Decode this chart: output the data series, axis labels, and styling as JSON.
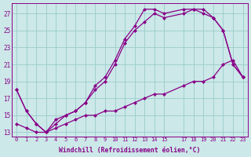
{
  "xlabel": "Windchill (Refroidissement éolien,°C)",
  "background_color": "#cce8e8",
  "grid_color": "#99cccc",
  "line_color": "#880088",
  "marker": "D",
  "markersize": 2.5,
  "linewidth": 0.9,
  "xlim": [
    -0.5,
    23.5
  ],
  "ylim": [
    12.5,
    28.2
  ],
  "xticks": [
    0,
    1,
    2,
    3,
    4,
    5,
    6,
    7,
    8,
    9,
    10,
    11,
    12,
    13,
    14,
    15,
    17,
    18,
    19,
    20,
    21,
    22,
    23
  ],
  "yticks": [
    13,
    15,
    17,
    19,
    21,
    23,
    25,
    27
  ],
  "line1_x": [
    0,
    1,
    2,
    3,
    4,
    5,
    6,
    7,
    8,
    9,
    10,
    11,
    12,
    13,
    14,
    15,
    17,
    18,
    19,
    20,
    21,
    22,
    23
  ],
  "line1_y": [
    18.0,
    15.5,
    14.0,
    13.0,
    14.0,
    15.0,
    15.5,
    16.5,
    18.5,
    19.5,
    21.5,
    24.0,
    25.5,
    27.5,
    27.5,
    27.0,
    27.5,
    27.5,
    27.5,
    26.5,
    25.0,
    21.0,
    19.5
  ],
  "line2_x": [
    0,
    1,
    2,
    3,
    4,
    5,
    6,
    7,
    8,
    9,
    10,
    11,
    12,
    13,
    14,
    15,
    17,
    18,
    19,
    20,
    21,
    22,
    23
  ],
  "line2_y": [
    18.0,
    15.5,
    14.0,
    13.0,
    14.5,
    15.0,
    15.5,
    16.5,
    18.0,
    19.0,
    21.0,
    23.5,
    25.0,
    26.0,
    27.0,
    26.5,
    27.0,
    27.5,
    27.0,
    26.5,
    25.0,
    21.0,
    19.5
  ],
  "line3_x": [
    0,
    1,
    2,
    3,
    4,
    5,
    6,
    7,
    8,
    9,
    10,
    11,
    12,
    13,
    14,
    15,
    17,
    18,
    19,
    20,
    21,
    22,
    23
  ],
  "line3_y": [
    14.0,
    13.5,
    13.0,
    13.0,
    13.5,
    14.0,
    14.5,
    15.0,
    15.0,
    15.5,
    15.5,
    16.0,
    16.5,
    17.0,
    17.5,
    17.5,
    18.5,
    19.0,
    19.0,
    19.5,
    21.0,
    21.5,
    19.5
  ]
}
